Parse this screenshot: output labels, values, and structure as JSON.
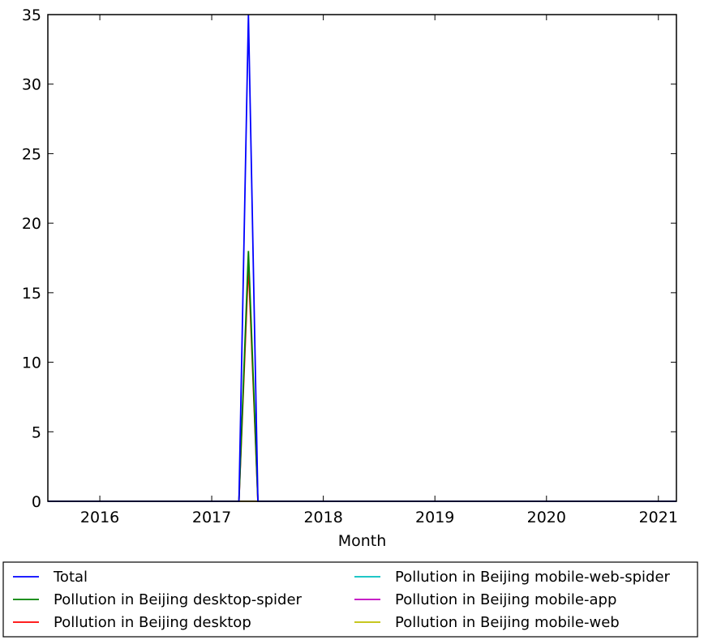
{
  "chart_data": {
    "type": "line",
    "title": "",
    "xlabel": "Month",
    "ylabel": "",
    "xlim": [
      "2015-07-15",
      "2021-03-01"
    ],
    "ylim": [
      0,
      35
    ],
    "x_ticks": [
      "2016",
      "2017",
      "2018",
      "2019",
      "2020",
      "2021"
    ],
    "y_ticks": [
      "0",
      "5",
      "10",
      "15",
      "20",
      "25",
      "30",
      "35"
    ],
    "grid": false,
    "legend_position": "bottom",
    "series": [
      {
        "name": "Total",
        "color": "#0000ff",
        "points": [
          {
            "x": "2015-07-15",
            "y": 0
          },
          {
            "x": "2017-03-31",
            "y": 0
          },
          {
            "x": "2017-05-01",
            "y": 35
          },
          {
            "x": "2017-06-01",
            "y": 0
          },
          {
            "x": "2021-03-01",
            "y": 0
          }
        ]
      },
      {
        "name": "Pollution in Beijing desktop-spider",
        "color": "#008000",
        "points": [
          {
            "x": "2015-07-15",
            "y": 0
          },
          {
            "x": "2017-03-31",
            "y": 0
          },
          {
            "x": "2017-05-01",
            "y": 18
          },
          {
            "x": "2017-06-01",
            "y": 0
          },
          {
            "x": "2021-03-01",
            "y": 0
          }
        ]
      },
      {
        "name": "Pollution in Beijing desktop",
        "color": "#ff0000",
        "points": [
          {
            "x": "2015-07-15",
            "y": 0
          },
          {
            "x": "2017-03-31",
            "y": 0
          },
          {
            "x": "2017-05-01",
            "y": 17
          },
          {
            "x": "2017-06-01",
            "y": 0
          },
          {
            "x": "2021-03-01",
            "y": 0
          }
        ]
      },
      {
        "name": "Pollution in Beijing mobile-web-spider",
        "color": "#00bfbf",
        "points": [
          {
            "x": "2015-07-15",
            "y": 0
          },
          {
            "x": "2021-03-01",
            "y": 0
          }
        ]
      },
      {
        "name": "Pollution in Beijing mobile-app",
        "color": "#bf00bf",
        "points": [
          {
            "x": "2015-07-15",
            "y": 0
          },
          {
            "x": "2021-03-01",
            "y": 0
          }
        ]
      },
      {
        "name": "Pollution in Beijing mobile-web",
        "color": "#bfbf00",
        "points": [
          {
            "x": "2015-07-15",
            "y": 0
          },
          {
            "x": "2021-03-01",
            "y": 0
          }
        ]
      }
    ]
  }
}
